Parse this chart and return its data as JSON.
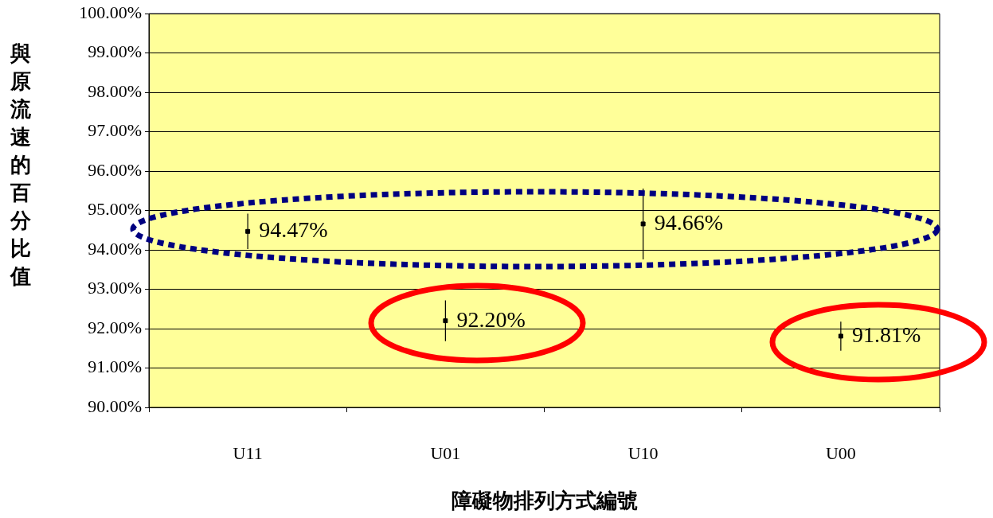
{
  "chart_data": {
    "type": "scatter",
    "xlabel": "障礙物排列方式編號",
    "ylabel": "與原流速的百分比值",
    "categories": [
      "U11",
      "U01",
      "U10",
      "U00"
    ],
    "series": [
      {
        "color": "#000000",
        "values": [
          94.47,
          92.2,
          94.66,
          91.81
        ],
        "errors": [
          0.45,
          0.52,
          0.9,
          0.37
        ],
        "value_labels": [
          "94.47%",
          "92.20%",
          "94.66%",
          "91.81%"
        ]
      }
    ],
    "ylim": [
      90,
      100
    ],
    "yticks": [
      {
        "value": 90,
        "label": "90.00%"
      },
      {
        "value": 91,
        "label": "91.00%"
      },
      {
        "value": 92,
        "label": "92.00%"
      },
      {
        "value": 93,
        "label": "93.00%"
      },
      {
        "value": 94,
        "label": "94.00%"
      },
      {
        "value": 95,
        "label": "95.00%"
      },
      {
        "value": 96,
        "label": "96.00%"
      },
      {
        "value": 97,
        "label": "97.00%"
      },
      {
        "value": 98,
        "label": "98.00%"
      },
      {
        "value": 99,
        "label": "99.00%"
      },
      {
        "value": 100,
        "label": "100.00%"
      }
    ],
    "grid": "y",
    "legend": false,
    "marker": "square"
  }
}
